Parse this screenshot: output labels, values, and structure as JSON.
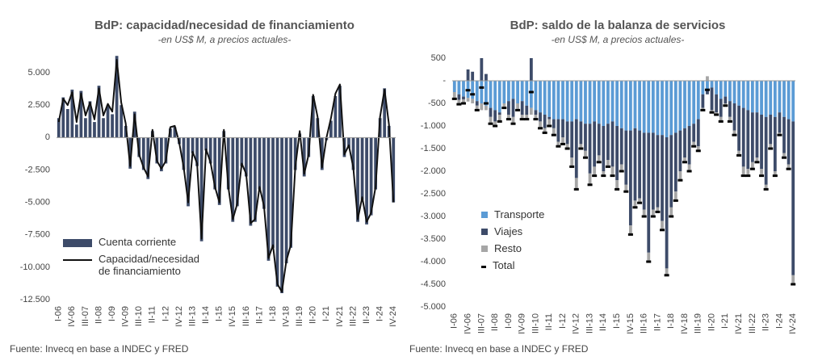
{
  "chart_data": [
    {
      "type": "bar_line",
      "title": "BdP: capacidad/necesidad de financiamiento",
      "subtitle": "-en US$ M, a precios actuales-",
      "source": "Fuente: Invecq en base a INDEC y FRED",
      "categories": [
        "I-06",
        null,
        null,
        "IV-06",
        null,
        null,
        "III-07",
        null,
        null,
        "II-08",
        null,
        null,
        "I-09",
        null,
        null,
        "IV-09",
        null,
        null,
        "III-10",
        null,
        null,
        "II-11",
        null,
        null,
        "I-12",
        null,
        null,
        "IV-12",
        null,
        null,
        "III-13",
        null,
        null,
        "II-14",
        null,
        null,
        "I-15",
        null,
        null,
        "IV-15",
        null,
        null,
        "III-16",
        null,
        null,
        "II-17",
        null,
        null,
        "I-18",
        null,
        null,
        "IV-18",
        null,
        null,
        "III-19",
        null,
        null,
        "II-20",
        null,
        null,
        "I-21",
        null,
        null,
        "IV-21",
        null,
        null,
        "III-22",
        null,
        null,
        "II-23",
        null,
        null,
        "I-24",
        null,
        null,
        "IV-24"
      ],
      "series": [
        {
          "name": "Cuenta corriente",
          "type": "bar",
          "color": "#3d4b69",
          "values": [
            1500,
            3100,
            2200,
            3700,
            1000,
            3600,
            1500,
            2800,
            1200,
            4000,
            1500,
            2500,
            1800,
            6300,
            2500,
            900,
            -2400,
            2000,
            -1500,
            -2500,
            -3200,
            500,
            -2000,
            -2600,
            -2000,
            700,
            800,
            -500,
            -2500,
            -5300,
            -1200,
            -2200,
            -8000,
            -1000,
            -2000,
            -4000,
            -5200,
            500,
            -4000,
            -6500,
            -5300,
            -2200,
            -3000,
            -6800,
            -6500,
            -4000,
            -5500,
            -9500,
            -8500,
            -11500,
            -12000,
            -9700,
            -8500,
            -2500,
            300,
            -3000,
            -1500,
            3200,
            1500,
            -2500,
            -200,
            1300,
            3200,
            4000,
            -1500,
            -800,
            -2500,
            -6500,
            -4800,
            -6700,
            -6000,
            -4000,
            1500,
            3800,
            900,
            -5000
          ]
        },
        {
          "name": "Capacidad/necesidad de financiamiento",
          "type": "line",
          "color": "#111111",
          "values": [
            1200,
            3000,
            2500,
            3500,
            1200,
            3400,
            1700,
            2700,
            1400,
            3800,
            1700,
            2600,
            2000,
            6000,
            2700,
            1100,
            -2200,
            1800,
            -1300,
            -2300,
            -3000,
            600,
            -1800,
            -2400,
            -1800,
            800,
            900,
            -400,
            -2300,
            -5000,
            -1100,
            -2000,
            -7800,
            -900,
            -1900,
            -3800,
            -5000,
            600,
            -3800,
            -6300,
            -5100,
            -2000,
            -2800,
            -6600,
            -6300,
            -3800,
            -5300,
            -9300,
            -8300,
            -11300,
            -11900,
            -9500,
            -8300,
            -2300,
            500,
            -2800,
            -1300,
            3300,
            1600,
            -2300,
            0,
            1500,
            3400,
            4100,
            -1300,
            -600,
            -2300,
            -6300,
            -4600,
            -6500,
            -5800,
            -3800,
            1600,
            3700,
            1000,
            -5000
          ]
        }
      ],
      "ylim": [
        -12500,
        6500
      ],
      "yticks": [
        {
          "value": -12500,
          "label": "-12.500"
        },
        {
          "value": -10000,
          "label": "-10.000"
        },
        {
          "value": -7500,
          "label": "-7.500"
        },
        {
          "value": -5000,
          "label": "-5.000"
        },
        {
          "value": -2500,
          "label": "-2.500"
        },
        0,
        {
          "value": 2500,
          "label": "2.500"
        },
        {
          "value": 5000,
          "label": "5.000"
        }
      ]
    },
    {
      "type": "stacked_bar",
      "title": "BdP: saldo de la balanza de servicios",
      "subtitle": "-en US$ M, a precios actuales-",
      "source": "Fuente: Invecq en base a INDEC y FRED",
      "categories": [
        "I-06",
        null,
        null,
        "IV-06",
        null,
        null,
        "III-07",
        null,
        null,
        "II-08",
        null,
        null,
        "I-09",
        null,
        null,
        "IV-09",
        null,
        null,
        "III-10",
        null,
        null,
        "II-11",
        null,
        null,
        "I-12",
        null,
        null,
        "IV-12",
        null,
        null,
        "III-13",
        null,
        null,
        "II-14",
        null,
        null,
        "I-15",
        null,
        null,
        "IV-15",
        null,
        null,
        "III-16",
        null,
        null,
        "II-17",
        null,
        null,
        "I-18",
        null,
        null,
        "IV-18",
        null,
        null,
        "III-19",
        null,
        null,
        "II-20",
        null,
        null,
        "I-21",
        null,
        null,
        "IV-21",
        null,
        null,
        "III-22",
        null,
        null,
        "II-23",
        null,
        null,
        "I-24",
        null,
        null,
        "IV-24"
      ],
      "series": [
        {
          "name": "Transporte",
          "type": "bar",
          "color": "#5b9bd5",
          "values": [
            -250,
            -300,
            -350,
            -380,
            -400,
            -450,
            -500,
            -550,
            -600,
            -650,
            -700,
            -500,
            -450,
            -400,
            -500,
            -450,
            -550,
            -600,
            -650,
            -700,
            -750,
            -800,
            -850,
            -850,
            -850,
            -900,
            -900,
            -850,
            -900,
            -950,
            -950,
            -900,
            -950,
            -1000,
            -950,
            -900,
            -1000,
            -1050,
            -1100,
            -1100,
            -1050,
            -1100,
            -1150,
            -1150,
            -1150,
            -1200,
            -1200,
            -1250,
            -1200,
            -1150,
            -1100,
            -1050,
            -1000,
            -950,
            -850,
            -300,
            -200,
            -150,
            -300,
            -400,
            -350,
            -450,
            -500,
            -550,
            -600,
            -650,
            -700,
            -700,
            -750,
            -800,
            -750,
            -800,
            -700,
            -800,
            -850,
            -900
          ]
        },
        {
          "name": "Viajes",
          "type": "bar",
          "color": "#3d4b69",
          "values": [
            0,
            -120,
            -60,
            250,
            200,
            -100,
            500,
            150,
            -200,
            -250,
            -50,
            0,
            -300,
            -400,
            0,
            -300,
            -200,
            500,
            -100,
            -200,
            -300,
            -50,
            -200,
            -500,
            -400,
            -500,
            -800,
            -1300,
            -500,
            -600,
            -1100,
            -1000,
            -700,
            -1000,
            -800,
            -1000,
            -1200,
            -800,
            -1200,
            -2100,
            -1600,
            -1500,
            -1700,
            -2650,
            -1700,
            -1600,
            -1900,
            -2900,
            -1600,
            -1300,
            -900,
            -650,
            -850,
            -400,
            -600,
            -300,
            -100,
            -500,
            -400,
            -400,
            -150,
            -350,
            -600,
            -1000,
            -1300,
            -1300,
            -1100,
            -1000,
            -1200,
            -1500,
            -650,
            -1200,
            -450,
            -800,
            -1000,
            -3400
          ]
        },
        {
          "name": "Resto",
          "type": "bar",
          "color": "#a6a6a6",
          "values": [
            -150,
            -100,
            -90,
            -80,
            -100,
            -100,
            -150,
            -100,
            -150,
            -100,
            -150,
            -100,
            -100,
            -150,
            -150,
            -100,
            -100,
            -150,
            -100,
            -150,
            -100,
            -150,
            -150,
            -100,
            -150,
            -100,
            -200,
            -250,
            -100,
            -150,
            -250,
            -200,
            -150,
            -100,
            -150,
            -200,
            -200,
            -150,
            -150,
            -200,
            -150,
            -100,
            -150,
            -200,
            -150,
            -100,
            -200,
            -150,
            -200,
            -200,
            -200,
            -100,
            -150,
            -100,
            -100,
            -50,
            100,
            -50,
            -50,
            -100,
            -50,
            -100,
            -100,
            -100,
            -200,
            -150,
            -150,
            -100,
            -150,
            -100,
            -100,
            -100,
            -50,
            -100,
            -100,
            -200
          ]
        },
        {
          "name": "Total",
          "type": "marker",
          "color": "#000000",
          "values": [
            -400,
            -520,
            -500,
            -210,
            -300,
            -650,
            -150,
            -500,
            -950,
            -1000,
            -900,
            -600,
            -850,
            -950,
            -650,
            -850,
            -850,
            -250,
            -850,
            -1050,
            -1150,
            -1000,
            -1200,
            -1450,
            -1400,
            -1500,
            -1900,
            -2400,
            -1500,
            -1700,
            -2300,
            -2100,
            -1800,
            -2100,
            -1900,
            -2100,
            -2400,
            -2000,
            -2450,
            -3400,
            -2800,
            -2700,
            -3000,
            -4000,
            -3000,
            -2900,
            -3300,
            -4300,
            -3000,
            -2650,
            -2200,
            -1800,
            -2000,
            -1450,
            -1550,
            -650,
            -200,
            -700,
            -750,
            -900,
            -550,
            -900,
            -1200,
            -1650,
            -2100,
            -2100,
            -1950,
            -1800,
            -2100,
            -2400,
            -1500,
            -2100,
            -1200,
            -1700,
            -1950,
            -4500
          ]
        }
      ],
      "ylim": [
        -5000,
        500
      ],
      "yticks": [
        {
          "value": -5000,
          "label": "-5.000"
        },
        {
          "value": -4500,
          "label": "-4.500"
        },
        {
          "value": -4000,
          "label": "-4.000"
        },
        {
          "value": -3500,
          "label": "-3.500"
        },
        {
          "value": -3000,
          "label": "-3.000"
        },
        {
          "value": -2500,
          "label": "-2.500"
        },
        {
          "value": -2000,
          "label": "-2.000"
        },
        {
          "value": -1500,
          "label": "-1.500"
        },
        {
          "value": -1000,
          "label": "-1.000"
        },
        {
          "value": -500,
          "label": "-500"
        },
        {
          "value": 0,
          "label": "-"
        },
        500
      ]
    }
  ]
}
